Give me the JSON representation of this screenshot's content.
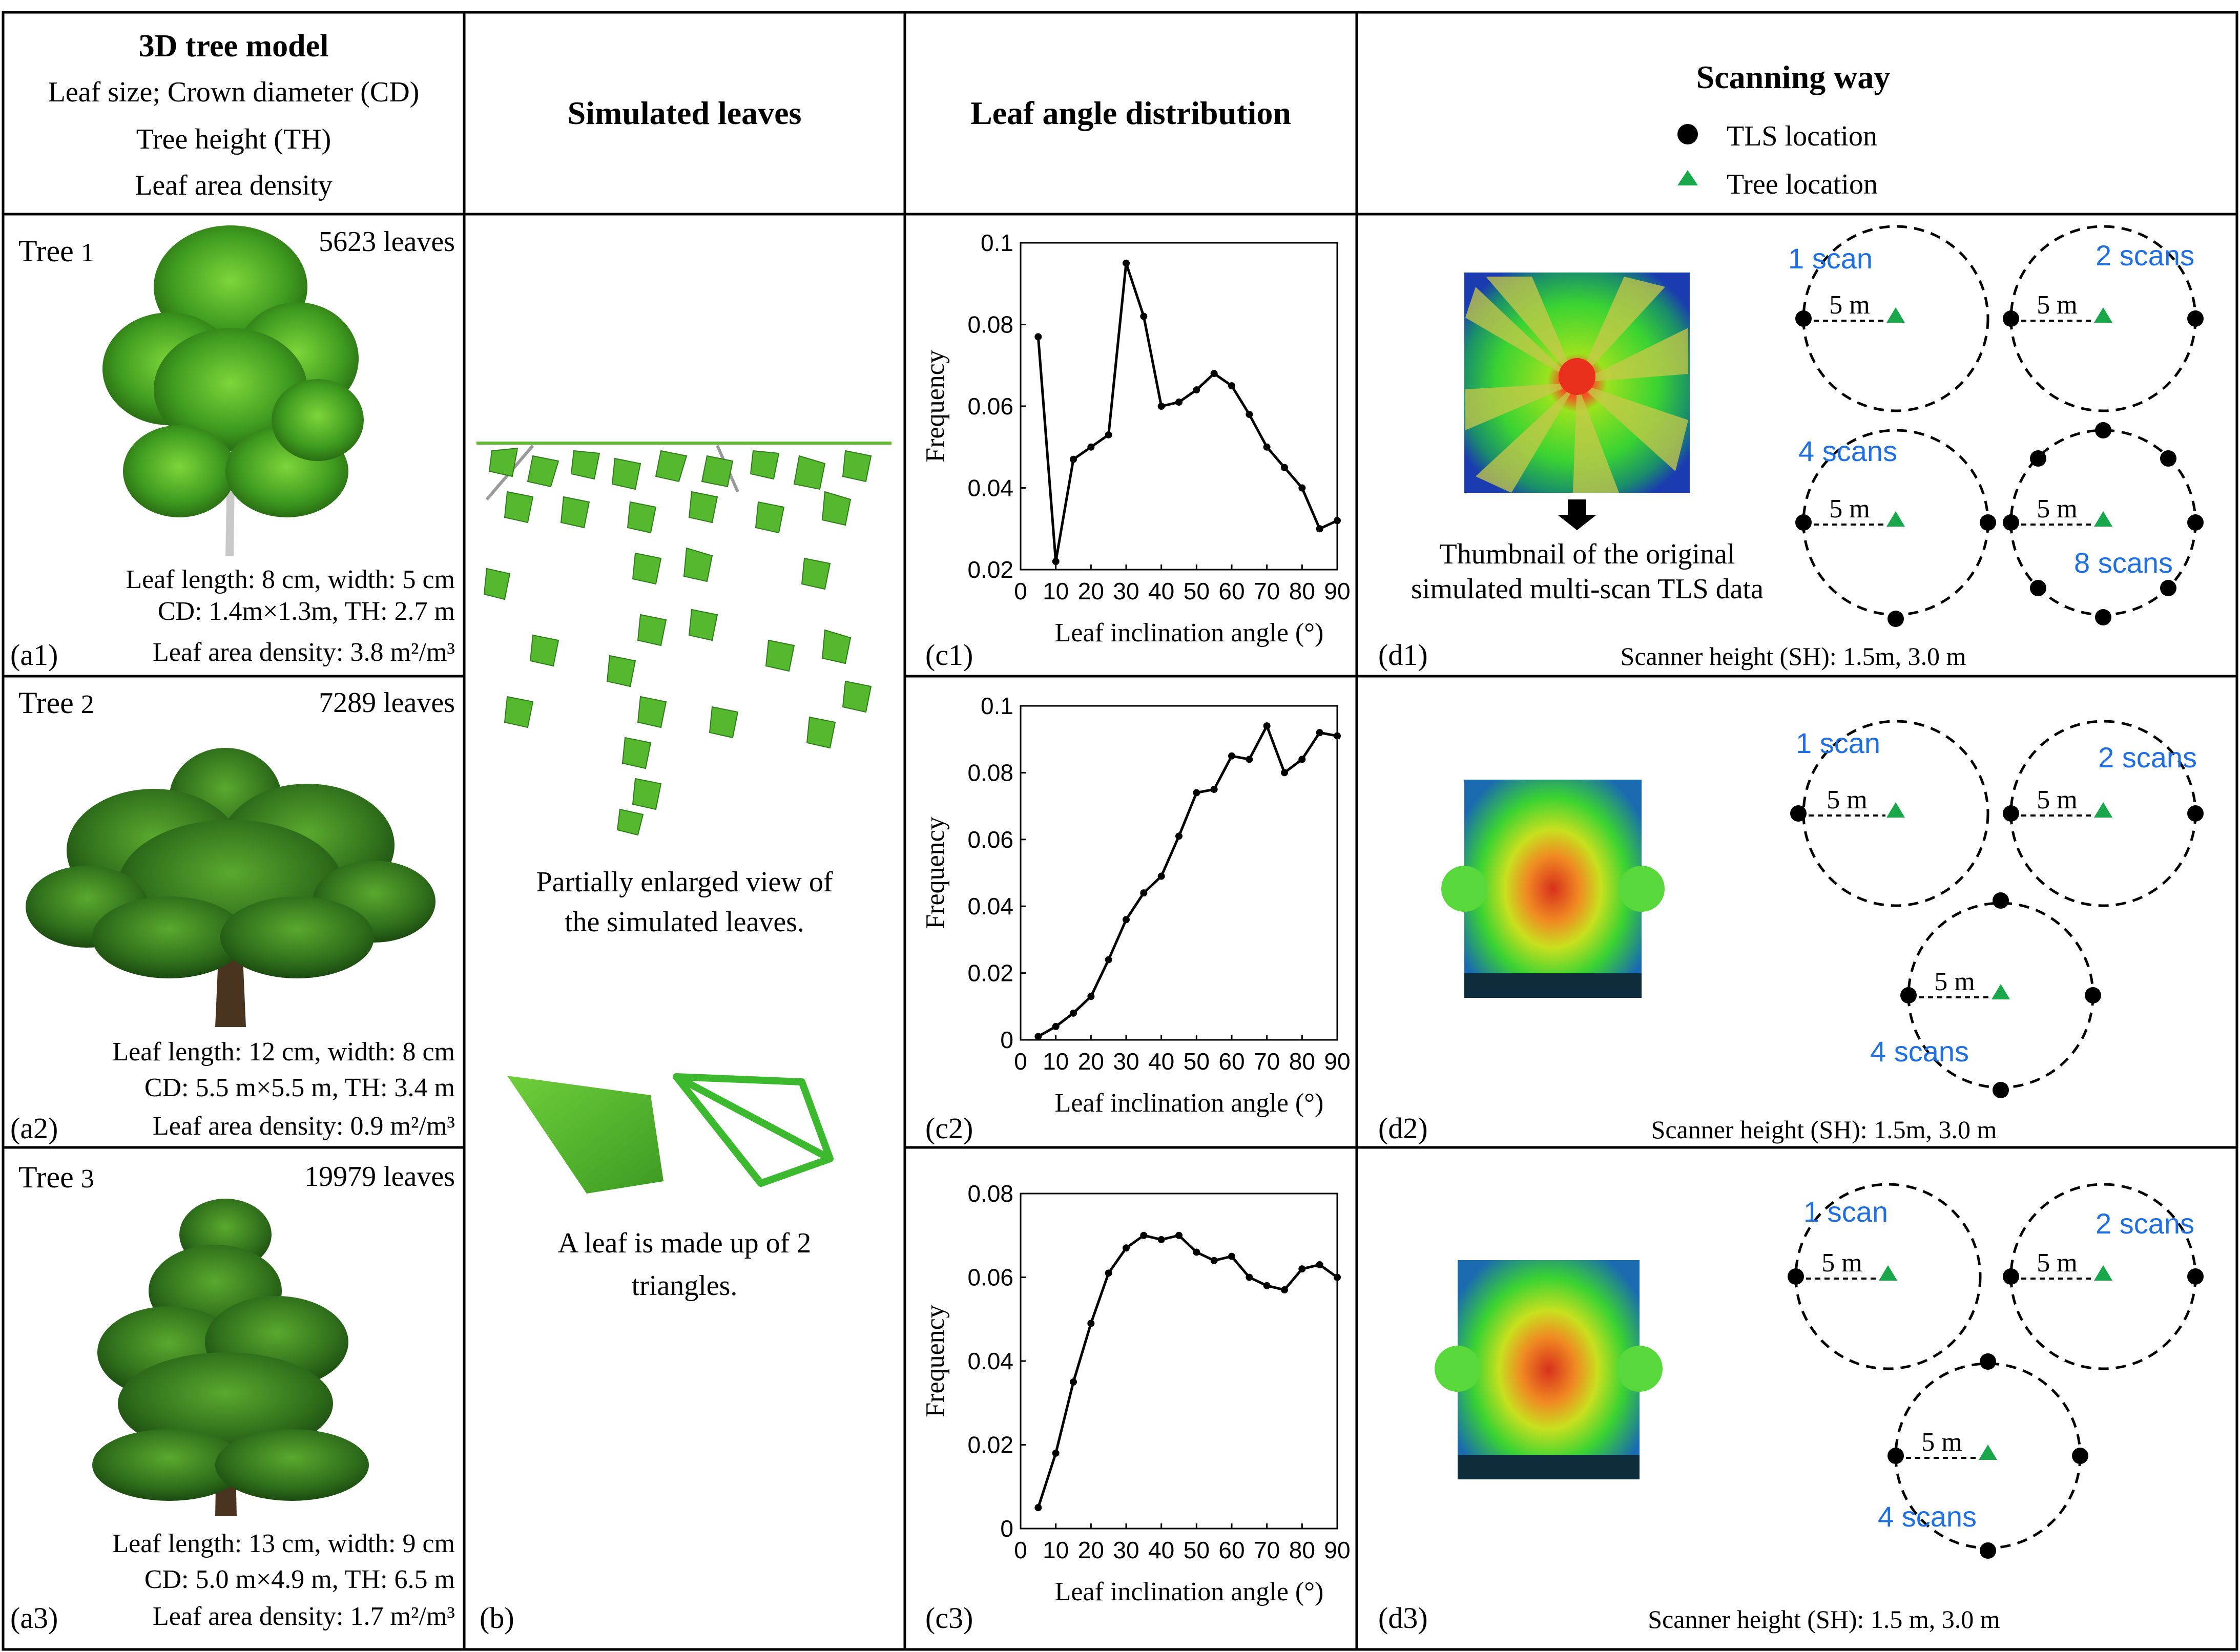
{
  "headers": {
    "col_a": {
      "title": "3D tree model",
      "line1": "Leaf size; Crown diameter (CD)",
      "line2": "Tree height (TH)",
      "line3": "Leaf area density"
    },
    "col_b": "Simulated leaves",
    "col_c": "Leaf angle distribution",
    "col_d": {
      "title": "Scanning way",
      "legend_tls": "TLS location",
      "legend_tree": "Tree location"
    }
  },
  "trees": [
    {
      "name_main": "Tree",
      "name_num": "1",
      "leaves": "5623 leaves",
      "leaf_size": "Leaf length: 8 cm, width: 5 cm",
      "cd_th": "CD: 1.4m×1.3m, TH: 2.7 m",
      "density": "Leaf area density: 3.8 m²/m³",
      "panel": "(a1)"
    },
    {
      "name_main": "Tree",
      "name_num": "2",
      "leaves": "7289 leaves",
      "leaf_size": "Leaf length: 12 cm, width: 8 cm",
      "cd_th": "CD: 5.5 m×5.5 m, TH: 3.4 m",
      "density": "Leaf area density: 0.9 m²/m³",
      "panel": "(a2)"
    },
    {
      "name_main": "Tree",
      "name_num": "3",
      "leaves": "19979 leaves",
      "leaf_size": "Leaf length: 13 cm, width: 9 cm",
      "cd_th": "CD: 5.0 m×4.9 m, TH: 6.5 m",
      "density": "Leaf area density: 1.7 m²/m³",
      "panel": "(a3)"
    }
  ],
  "col_b": {
    "caption1_line1": "Partially enlarged view of",
    "caption1_line2": "the simulated leaves.",
    "caption2_line1": "A leaf is made up of 2",
    "caption2_line2": "triangles.",
    "panel": "(b)"
  },
  "col_d": {
    "thumb_line1": "Thumbnail of the original",
    "thumb_line2": "simulated multi-scan TLS data",
    "distance": "5 m",
    "scan1": "1 scan",
    "scan2": "2 scans",
    "scan4": "4 scans",
    "scan8": "8 scans",
    "sh": [
      "Scanner height (SH): 1.5m, 3.0 m",
      "Scanner height (SH): 1.5m, 3.0 m",
      "Scanner height (SH): 1.5 m, 3.0 m"
    ],
    "panels": [
      "(d1)",
      "(d2)",
      "(d3)"
    ]
  },
  "colors": {
    "grid": "#000000",
    "scan_label": "#1f6fe0",
    "tree_marker": "#1aa64a",
    "leaf_green": "#4fb82a",
    "leaf_dark": "#2f7d1c"
  },
  "chart_data": [
    {
      "type": "line",
      "panel": "(c1)",
      "x": [
        5,
        10,
        15,
        20,
        25,
        30,
        35,
        40,
        45,
        50,
        55,
        60,
        65,
        70,
        75,
        80,
        85,
        90
      ],
      "y": [
        0.077,
        0.022,
        0.047,
        0.05,
        0.053,
        0.095,
        0.082,
        0.06,
        0.061,
        0.064,
        0.068,
        0.065,
        0.058,
        0.05,
        0.045,
        0.04,
        0.03,
        0.032
      ],
      "xlabel": "Leaf inclination angle (°)",
      "ylabel": "Frequency",
      "xlim": [
        0,
        90
      ],
      "ylim": [
        0.02,
        0.1
      ],
      "xticks": [
        "0",
        "10",
        "20",
        "30",
        "40",
        "50",
        "60",
        "70",
        "80",
        "90"
      ],
      "xtick_values": [
        0,
        10,
        20,
        30,
        40,
        50,
        60,
        70,
        80,
        90
      ],
      "yticks": [
        "0.02",
        "0.04",
        "0.06",
        "0.08",
        "0.1"
      ],
      "ytick_values": [
        0.02,
        0.04,
        0.06,
        0.08,
        0.1
      ]
    },
    {
      "type": "line",
      "panel": "(c2)",
      "x": [
        5,
        10,
        15,
        20,
        25,
        30,
        35,
        40,
        45,
        50,
        55,
        60,
        65,
        70,
        75,
        80,
        85,
        90
      ],
      "y": [
        0.001,
        0.004,
        0.008,
        0.013,
        0.024,
        0.036,
        0.044,
        0.049,
        0.061,
        0.074,
        0.075,
        0.085,
        0.084,
        0.094,
        0.08,
        0.084,
        0.092,
        0.091
      ],
      "xlabel": "Leaf inclination angle (°)",
      "ylabel": "Frequency",
      "xlim": [
        0,
        90
      ],
      "ylim": [
        0,
        0.1
      ],
      "xticks": [
        "0",
        "10",
        "20",
        "30",
        "40",
        "50",
        "60",
        "70",
        "80",
        "90"
      ],
      "xtick_values": [
        0,
        10,
        20,
        30,
        40,
        50,
        60,
        70,
        80,
        90
      ],
      "yticks": [
        "0",
        "0.02",
        "0.04",
        "0.06",
        "0.08",
        "0.1"
      ],
      "ytick_values": [
        0,
        0.02,
        0.04,
        0.06,
        0.08,
        0.1
      ]
    },
    {
      "type": "line",
      "panel": "(c3)",
      "x": [
        5,
        10,
        15,
        20,
        25,
        30,
        35,
        40,
        45,
        50,
        55,
        60,
        65,
        70,
        75,
        80,
        85,
        90
      ],
      "y": [
        0.005,
        0.018,
        0.035,
        0.049,
        0.061,
        0.067,
        0.07,
        0.069,
        0.07,
        0.066,
        0.064,
        0.065,
        0.06,
        0.058,
        0.057,
        0.062,
        0.063,
        0.06
      ],
      "xlabel": "Leaf inclination angle (°)",
      "ylabel": "Frequency",
      "xlim": [
        0,
        90
      ],
      "ylim": [
        0,
        0.08
      ],
      "xticks": [
        "0",
        "10",
        "20",
        "30",
        "40",
        "50",
        "60",
        "70",
        "80",
        "90"
      ],
      "xtick_values": [
        0,
        10,
        20,
        30,
        40,
        50,
        60,
        70,
        80,
        90
      ],
      "yticks": [
        "0",
        "0.02",
        "0.04",
        "0.06",
        "0.08"
      ],
      "ytick_values": [
        0,
        0.02,
        0.04,
        0.06,
        0.08
      ]
    }
  ]
}
